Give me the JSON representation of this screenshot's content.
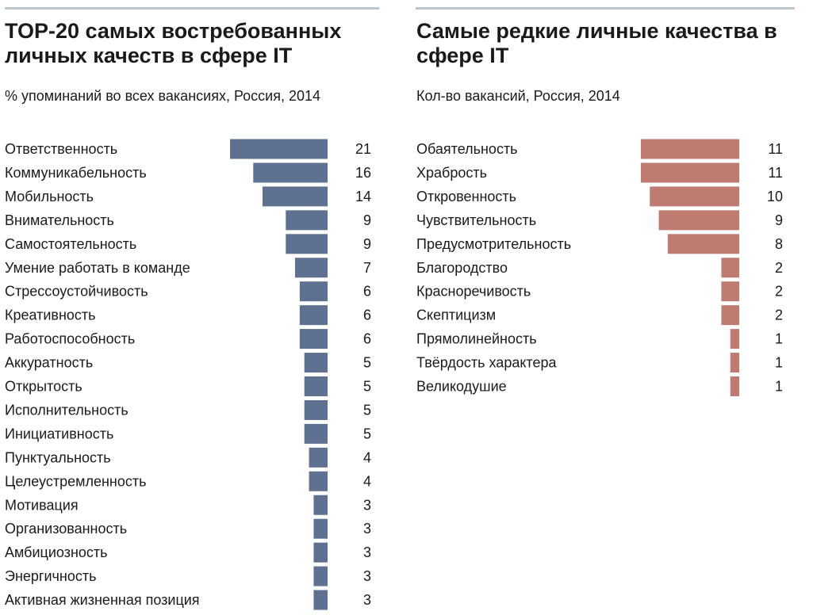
{
  "chart_data": [
    {
      "type": "bar",
      "orientation": "horizontal",
      "title": "TOP-20 самых востребованных личных качеств в сфере IT",
      "subtitle": "% упоминаний во всех вакансиях, Россия, 2014",
      "color": "#5f7190",
      "xlim": [
        0,
        21
      ],
      "categories": [
        "Ответственность",
        "Коммуникабельность",
        "Мобильность",
        "Внимательность",
        "Самостоятельность",
        "Умение работать в команде",
        "Стрессоустойчивость",
        "Креативность",
        "Работоспособность",
        "Аккуратность",
        "Открытость",
        "Исполнительность",
        "Инициативность",
        "Пунктуальность",
        "Целеустремленность",
        "Мотивация",
        "Организованность",
        "Амбициозность",
        "Энергичность",
        "Активная жизненная позиция"
      ],
      "values": [
        21,
        16,
        14,
        9,
        9,
        7,
        6,
        6,
        6,
        5,
        5,
        5,
        5,
        4,
        4,
        3,
        3,
        3,
        3,
        3
      ]
    },
    {
      "type": "bar",
      "orientation": "horizontal",
      "title": "Самые редкие личные качества в сфере IT",
      "subtitle": "Кол-во вакансий, Россия, 2014",
      "color": "#bf7b70",
      "xlim": [
        0,
        11
      ],
      "categories": [
        "Обаятельность",
        "Храбрость",
        "Откровенность",
        "Чувствительность",
        "Предусмотрительность",
        "Благородство",
        "Красноречивость",
        "Скептицизм",
        "Прямолинейность",
        "Твёрдость характера",
        "Великодушие"
      ],
      "values": [
        11,
        11,
        10,
        9,
        8,
        2,
        2,
        2,
        1,
        1,
        1
      ]
    }
  ]
}
